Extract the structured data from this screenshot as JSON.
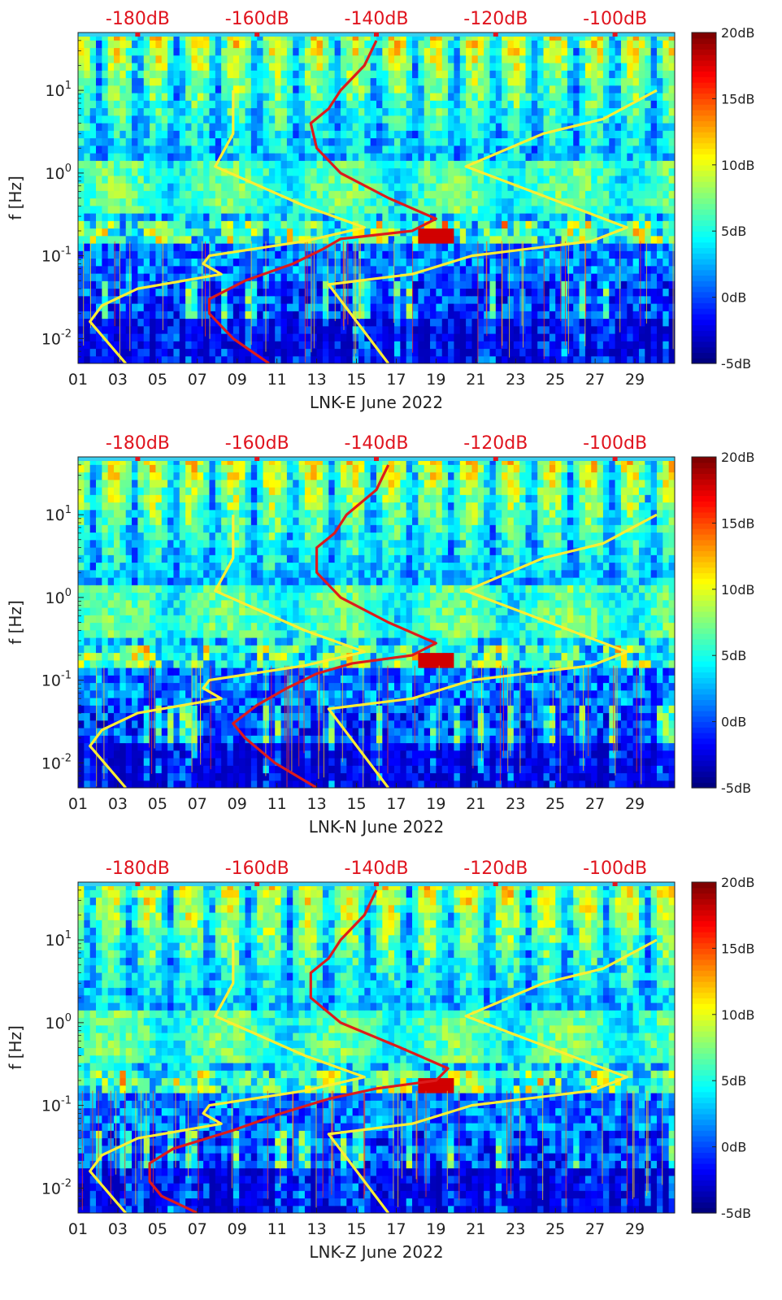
{
  "panels": [
    {
      "station_label": "LNK-E June 2022",
      "ylabel": "f [Hz]",
      "top_axis_labels": [
        "-180dB",
        "-160dB",
        "-140dB",
        "-120dB",
        "-100dB"
      ],
      "x_tick_labels": [
        "01",
        "03",
        "05",
        "07",
        "09",
        "11",
        "13",
        "15",
        "17",
        "19",
        "21",
        "23",
        "25",
        "27",
        "29"
      ],
      "y_tick_labels": [
        "10^-2",
        "10^-1",
        "10^0",
        "10^1"
      ],
      "colorbar_labels": [
        "20dB",
        "15dB",
        "10dB",
        "5dB",
        "0dB",
        "-5dB"
      ]
    },
    {
      "station_label": "LNK-N June 2022",
      "ylabel": "f [Hz]",
      "top_axis_labels": [
        "-180dB",
        "-160dB",
        "-140dB",
        "-120dB",
        "-100dB"
      ],
      "x_tick_labels": [
        "01",
        "03",
        "05",
        "07",
        "09",
        "11",
        "13",
        "15",
        "17",
        "19",
        "21",
        "23",
        "25",
        "27",
        "29"
      ],
      "y_tick_labels": [
        "10^-2",
        "10^-1",
        "10^0",
        "10^1"
      ],
      "colorbar_labels": [
        "20dB",
        "15dB",
        "10dB",
        "5dB",
        "0dB",
        "-5dB"
      ]
    },
    {
      "station_label": "LNK-Z June 2022",
      "ylabel": "f [Hz]",
      "top_axis_labels": [
        "-180dB",
        "-160dB",
        "-140dB",
        "-120dB",
        "-100dB"
      ],
      "x_tick_labels": [
        "01",
        "03",
        "05",
        "07",
        "09",
        "11",
        "13",
        "15",
        "17",
        "19",
        "21",
        "23",
        "25",
        "27",
        "29"
      ],
      "y_tick_labels": [
        "10^-2",
        "10^-1",
        "10^0",
        "10^1"
      ],
      "colorbar_labels": [
        "20dB",
        "15dB",
        "10dB",
        "5dB",
        "0dB",
        "-5dB"
      ]
    }
  ],
  "chart_data": [
    {
      "type": "heatmap",
      "title": "LNK-E June 2022",
      "xlabel": "LNK-E June 2022",
      "ylabel": "f [Hz]",
      "x_range_days": [
        1,
        31
      ],
      "y_range_hz": [
        0.005,
        50
      ],
      "y_scale": "log",
      "color_range_db": [
        -5,
        20
      ],
      "top_axis_range_db": [
        -190,
        -90
      ],
      "series": [
        {
          "name": "noise-model-low",
          "color": "#ffee33",
          "points_f_db": [
            [
              0.005,
              -182
            ],
            [
              0.016,
              -188
            ],
            [
              0.025,
              -186
            ],
            [
              0.04,
              -180
            ],
            [
              0.06,
              -166
            ],
            [
              0.08,
              -169
            ],
            [
              0.1,
              -168
            ],
            [
              0.15,
              -152
            ],
            [
              0.22,
              -142
            ],
            [
              0.4,
              -152
            ],
            [
              1.2,
              -167
            ],
            [
              3,
              -164
            ],
            [
              10,
              -164
            ]
          ]
        },
        {
          "name": "noise-model-high",
          "color": "#ffee33",
          "points_f_db": [
            [
              0.005,
              -138
            ],
            [
              0.045,
              -148
            ],
            [
              0.06,
              -134
            ],
            [
              0.1,
              -124
            ],
            [
              0.15,
              -104
            ],
            [
              0.22,
              -98
            ],
            [
              1.2,
              -125
            ],
            [
              3,
              -112
            ],
            [
              4.5,
              -102
            ],
            [
              10,
              -93
            ]
          ]
        },
        {
          "name": "median-psd",
          "color": "#dd1b1b",
          "points_f_db": [
            [
              0.005,
              -158
            ],
            [
              0.01,
              -164
            ],
            [
              0.02,
              -168
            ],
            [
              0.03,
              -168
            ],
            [
              0.05,
              -162
            ],
            [
              0.08,
              -154
            ],
            [
              0.12,
              -149
            ],
            [
              0.16,
              -146
            ],
            [
              0.2,
              -134
            ],
            [
              0.28,
              -130
            ],
            [
              0.5,
              -138
            ],
            [
              1,
              -146
            ],
            [
              2,
              -150
            ],
            [
              4,
              -151
            ],
            [
              6,
              -148
            ],
            [
              10,
              -146
            ],
            [
              20,
              -142
            ],
            [
              40,
              -140
            ]
          ]
        }
      ]
    },
    {
      "type": "heatmap",
      "title": "LNK-N June 2022",
      "xlabel": "LNK-N June 2022",
      "ylabel": "f [Hz]",
      "x_range_days": [
        1,
        31
      ],
      "y_range_hz": [
        0.005,
        50
      ],
      "y_scale": "log",
      "color_range_db": [
        -5,
        20
      ],
      "top_axis_range_db": [
        -190,
        -90
      ],
      "series": [
        {
          "name": "noise-model-low",
          "color": "#ffee33",
          "points_f_db": [
            [
              0.005,
              -182
            ],
            [
              0.016,
              -188
            ],
            [
              0.025,
              -186
            ],
            [
              0.04,
              -180
            ],
            [
              0.06,
              -166
            ],
            [
              0.08,
              -169
            ],
            [
              0.1,
              -168
            ],
            [
              0.15,
              -152
            ],
            [
              0.22,
              -142
            ],
            [
              0.4,
              -152
            ],
            [
              1.2,
              -167
            ],
            [
              3,
              -164
            ],
            [
              10,
              -164
            ]
          ]
        },
        {
          "name": "noise-model-high",
          "color": "#ffee33",
          "points_f_db": [
            [
              0.005,
              -138
            ],
            [
              0.045,
              -148
            ],
            [
              0.06,
              -134
            ],
            [
              0.1,
              -124
            ],
            [
              0.15,
              -104
            ],
            [
              0.22,
              -98
            ],
            [
              1.2,
              -125
            ],
            [
              3,
              -112
            ],
            [
              4.5,
              -102
            ],
            [
              10,
              -93
            ]
          ]
        },
        {
          "name": "median-psd",
          "color": "#dd1b1b",
          "points_f_db": [
            [
              0.005,
              -150
            ],
            [
              0.01,
              -157
            ],
            [
              0.02,
              -162
            ],
            [
              0.03,
              -164
            ],
            [
              0.05,
              -160
            ],
            [
              0.08,
              -155
            ],
            [
              0.12,
              -150
            ],
            [
              0.16,
              -144
            ],
            [
              0.2,
              -134
            ],
            [
              0.28,
              -130
            ],
            [
              0.5,
              -138
            ],
            [
              1,
              -146
            ],
            [
              2,
              -150
            ],
            [
              4,
              -150
            ],
            [
              6,
              -147
            ],
            [
              10,
              -145
            ],
            [
              20,
              -140
            ],
            [
              40,
              -138
            ]
          ]
        }
      ]
    },
    {
      "type": "heatmap",
      "title": "LNK-Z June 2022",
      "xlabel": "LNK-Z June 2022",
      "ylabel": "f [Hz]",
      "x_range_days": [
        1,
        31
      ],
      "y_range_hz": [
        0.005,
        50
      ],
      "y_scale": "log",
      "color_range_db": [
        -5,
        20
      ],
      "top_axis_range_db": [
        -190,
        -90
      ],
      "series": [
        {
          "name": "noise-model-low",
          "color": "#ffee33",
          "points_f_db": [
            [
              0.005,
              -182
            ],
            [
              0.016,
              -188
            ],
            [
              0.025,
              -186
            ],
            [
              0.04,
              -180
            ],
            [
              0.06,
              -166
            ],
            [
              0.08,
              -169
            ],
            [
              0.1,
              -168
            ],
            [
              0.15,
              -152
            ],
            [
              0.22,
              -142
            ],
            [
              0.4,
              -152
            ],
            [
              1.2,
              -167
            ],
            [
              3,
              -164
            ],
            [
              10,
              -164
            ]
          ]
        },
        {
          "name": "noise-model-high",
          "color": "#ffee33",
          "points_f_db": [
            [
              0.005,
              -138
            ],
            [
              0.045,
              -148
            ],
            [
              0.06,
              -134
            ],
            [
              0.1,
              -124
            ],
            [
              0.15,
              -104
            ],
            [
              0.22,
              -98
            ],
            [
              1.2,
              -125
            ],
            [
              3,
              -112
            ],
            [
              4.5,
              -102
            ],
            [
              10,
              -93
            ]
          ]
        },
        {
          "name": "median-psd",
          "color": "#dd1b1b",
          "points_f_db": [
            [
              0.005,
              -170
            ],
            [
              0.008,
              -176
            ],
            [
              0.012,
              -178
            ],
            [
              0.02,
              -178
            ],
            [
              0.03,
              -174
            ],
            [
              0.05,
              -164
            ],
            [
              0.08,
              -156
            ],
            [
              0.12,
              -148
            ],
            [
              0.16,
              -140
            ],
            [
              0.2,
              -130
            ],
            [
              0.28,
              -128
            ],
            [
              0.5,
              -136
            ],
            [
              1,
              -146
            ],
            [
              2,
              -151
            ],
            [
              4,
              -151
            ],
            [
              6,
              -148
            ],
            [
              10,
              -146
            ],
            [
              20,
              -142
            ],
            [
              40,
              -140
            ]
          ]
        }
      ]
    }
  ]
}
